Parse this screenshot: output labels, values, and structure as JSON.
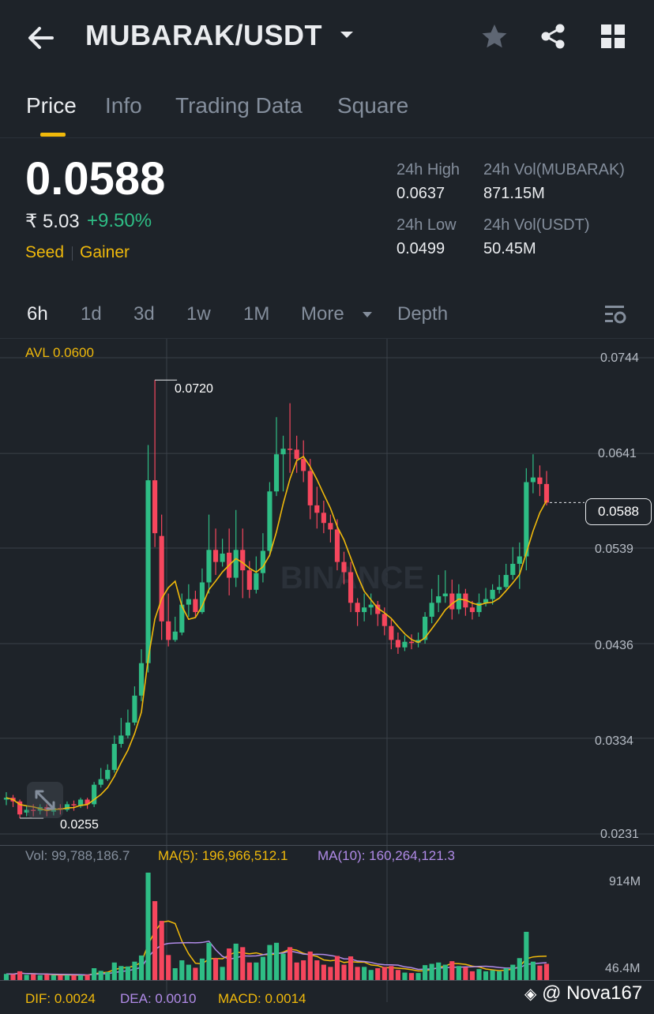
{
  "header": {
    "title": "MUBARAK/USDT"
  },
  "tabs": [
    "Price",
    "Info",
    "Trading Data",
    "Square"
  ],
  "ticker": {
    "price": "0.0588",
    "inr_price": "₹ 5.03",
    "change": "+9.50%",
    "tags": [
      "Seed",
      "Gainer"
    ],
    "stats": [
      {
        "label": "24h High",
        "value": "0.0637"
      },
      {
        "label": "24h Vol(MUBARAK)",
        "value": "871.15M"
      },
      {
        "label": "24h Low",
        "value": "0.0499"
      },
      {
        "label": "24h Vol(USDT)",
        "value": "50.45M"
      }
    ]
  },
  "timeframes": [
    "6h",
    "1d",
    "3d",
    "1w",
    "1M",
    "More",
    "Depth"
  ],
  "chart_data": {
    "type": "candlestick",
    "avl_label": "AVL 0.0600",
    "watermark": "BINANCE",
    "y_ticks": [
      "0.0744",
      "0.0641",
      "0.0539",
      "0.0436",
      "0.0334",
      "0.0231"
    ],
    "ylim": [
      0.0231,
      0.0744
    ],
    "high_marker": "0.0720",
    "low_marker": "0.0255",
    "current_price_label": "0.0588",
    "up_color": "#2ebd85",
    "down_color": "#f6465d",
    "ma_color": "#f0b90b",
    "candles": [
      [
        0.0268,
        0.027,
        0.0276,
        0.0262
      ],
      [
        0.027,
        0.0266,
        0.0273,
        0.026
      ],
      [
        0.0266,
        0.0252,
        0.0268,
        0.0248
      ],
      [
        0.0254,
        0.0257,
        0.0262,
        0.025
      ],
      [
        0.0257,
        0.0256,
        0.0263,
        0.025
      ],
      [
        0.0256,
        0.026,
        0.0263,
        0.0252
      ],
      [
        0.026,
        0.0256,
        0.0263,
        0.025
      ],
      [
        0.0255,
        0.0259,
        0.0262,
        0.0251
      ],
      [
        0.0259,
        0.0257,
        0.0263,
        0.0252
      ],
      [
        0.0257,
        0.0263,
        0.0266,
        0.0255
      ],
      [
        0.0263,
        0.0262,
        0.0267,
        0.0256
      ],
      [
        0.0261,
        0.0268,
        0.027,
        0.0259
      ],
      [
        0.0268,
        0.0263,
        0.027,
        0.0258
      ],
      [
        0.0263,
        0.0284,
        0.0287,
        0.026
      ],
      [
        0.0284,
        0.029,
        0.0302,
        0.0281
      ],
      [
        0.029,
        0.03,
        0.0306,
        0.0288
      ],
      [
        0.03,
        0.0328,
        0.0337,
        0.0297
      ],
      [
        0.0328,
        0.0337,
        0.0356,
        0.0324
      ],
      [
        0.0337,
        0.0351,
        0.0365,
        0.0334
      ],
      [
        0.0351,
        0.038,
        0.039,
        0.0348
      ],
      [
        0.038,
        0.0415,
        0.043,
        0.0374
      ],
      [
        0.0415,
        0.0612,
        0.065,
        0.0405
      ],
      [
        0.0612,
        0.0555,
        0.072,
        0.054
      ],
      [
        0.0552,
        0.046,
        0.0575,
        0.044
      ],
      [
        0.046,
        0.044,
        0.049,
        0.0433
      ],
      [
        0.044,
        0.0449,
        0.0465,
        0.0438
      ],
      [
        0.0448,
        0.0478,
        0.049,
        0.0445
      ],
      [
        0.0478,
        0.0484,
        0.05,
        0.0465
      ],
      [
        0.0484,
        0.047,
        0.0493,
        0.0465
      ],
      [
        0.047,
        0.0502,
        0.0517,
        0.0468
      ],
      [
        0.0502,
        0.0537,
        0.0575,
        0.049
      ],
      [
        0.0537,
        0.0524,
        0.056,
        0.051
      ],
      [
        0.0524,
        0.0533,
        0.0549,
        0.0519
      ],
      [
        0.0534,
        0.0507,
        0.056,
        0.0488
      ],
      [
        0.0507,
        0.0537,
        0.058,
        0.0497
      ],
      [
        0.0537,
        0.0515,
        0.056,
        0.0485
      ],
      [
        0.0515,
        0.0494,
        0.0525,
        0.0485
      ],
      [
        0.0494,
        0.0512,
        0.053,
        0.049
      ],
      [
        0.0512,
        0.0536,
        0.0555,
        0.0502
      ],
      [
        0.0536,
        0.06,
        0.061,
        0.053
      ],
      [
        0.06,
        0.064,
        0.068,
        0.0595
      ],
      [
        0.064,
        0.0646,
        0.066,
        0.06
      ],
      [
        0.0646,
        0.0645,
        0.0695,
        0.062
      ],
      [
        0.0645,
        0.0635,
        0.066,
        0.062
      ],
      [
        0.0635,
        0.0622,
        0.0655,
        0.061
      ],
      [
        0.0622,
        0.0585,
        0.0635,
        0.057
      ],
      [
        0.0585,
        0.0577,
        0.0605,
        0.056
      ],
      [
        0.0577,
        0.0566,
        0.059,
        0.0555
      ],
      [
        0.0566,
        0.0559,
        0.0575,
        0.0545
      ],
      [
        0.0559,
        0.0524,
        0.057,
        0.0515
      ],
      [
        0.0524,
        0.0513,
        0.0535,
        0.05
      ],
      [
        0.0513,
        0.048,
        0.0524,
        0.047
      ],
      [
        0.048,
        0.047,
        0.0485,
        0.0455
      ],
      [
        0.047,
        0.0475,
        0.049,
        0.046
      ],
      [
        0.0475,
        0.0478,
        0.049,
        0.0467
      ],
      [
        0.0478,
        0.0468,
        0.0482,
        0.0455
      ],
      [
        0.0468,
        0.0455,
        0.0475,
        0.0445
      ],
      [
        0.0455,
        0.044,
        0.0462,
        0.043
      ],
      [
        0.044,
        0.0432,
        0.0448,
        0.0425
      ],
      [
        0.0432,
        0.0438,
        0.0445,
        0.0428
      ],
      [
        0.0438,
        0.0437,
        0.0446,
        0.043
      ],
      [
        0.0437,
        0.044,
        0.0448,
        0.0432
      ],
      [
        0.044,
        0.0465,
        0.047,
        0.0436
      ],
      [
        0.0465,
        0.048,
        0.0495,
        0.0458
      ],
      [
        0.048,
        0.0487,
        0.051,
        0.047
      ],
      [
        0.0487,
        0.049,
        0.0515,
        0.048
      ],
      [
        0.049,
        0.0473,
        0.0505,
        0.0462
      ],
      [
        0.0473,
        0.049,
        0.05,
        0.0468
      ],
      [
        0.049,
        0.0475,
        0.0495,
        0.0466
      ],
      [
        0.0475,
        0.047,
        0.0482,
        0.0462
      ],
      [
        0.047,
        0.048,
        0.049,
        0.0465
      ],
      [
        0.048,
        0.0484,
        0.0496,
        0.0476
      ],
      [
        0.0484,
        0.0494,
        0.05,
        0.0478
      ],
      [
        0.0494,
        0.0497,
        0.051,
        0.049
      ],
      [
        0.0497,
        0.051,
        0.0522,
        0.0495
      ],
      [
        0.051,
        0.0522,
        0.054,
        0.0505
      ],
      [
        0.0522,
        0.053,
        0.0545,
        0.0495
      ],
      [
        0.053,
        0.061,
        0.0625,
        0.0515
      ],
      [
        0.061,
        0.0615,
        0.064,
        0.0598
      ],
      [
        0.0615,
        0.0608,
        0.0628,
        0.0595
      ],
      [
        0.0608,
        0.0588,
        0.0622,
        0.0585
      ]
    ]
  },
  "volume_legend": {
    "vol": "Vol: 99,788,186.7",
    "ma5": "MA(5): 196,966,512.1",
    "ma10": "MA(10): 160,264,121.3",
    "ma10_color": "#b18be8",
    "top_tick": "914M",
    "bottom_tick": "46.4M"
  },
  "macd_legend": {
    "dif": "DIF: 0.0024",
    "dea": "DEA: 0.0010",
    "macd": "MACD: 0.0014"
  },
  "watermark_user": "@ Nova167"
}
